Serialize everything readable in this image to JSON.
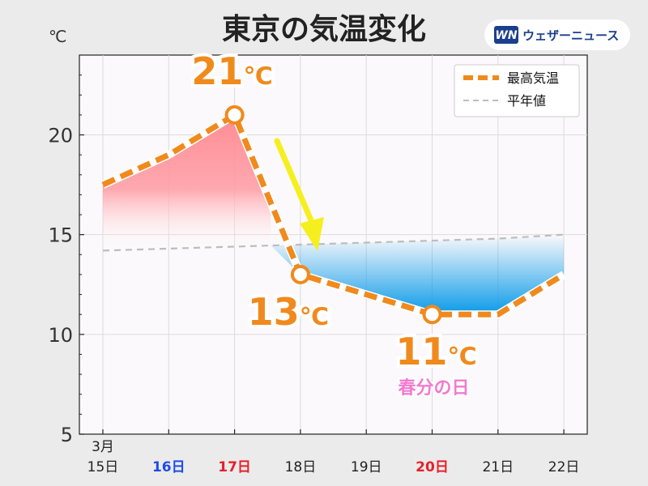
{
  "header": {
    "title": "東京の気温変化",
    "unit": "℃"
  },
  "logo": {
    "mark": "WN",
    "name": "ウェザーニュース"
  },
  "colors": {
    "max_line": "#f08a1d",
    "normal_line": "#bdbdbd",
    "warm_fill": "#ff8c94",
    "cool_fill": "#0a9ae8",
    "arrow": "#f5ef1e",
    "holiday": "#f37ad0"
  },
  "chart_data": {
    "type": "line",
    "ylim": [
      5,
      24
    ],
    "yticks": [
      5,
      10,
      15,
      20
    ],
    "x_labels": [
      {
        "top": "3月",
        "bottom": "15日",
        "color": "#222222",
        "bold": false
      },
      {
        "top": "",
        "bottom": "16日",
        "color": "#1f4be6",
        "bold": true
      },
      {
        "top": "",
        "bottom": "17日",
        "color": "#e8202a",
        "bold": true
      },
      {
        "top": "",
        "bottom": "18日",
        "color": "#222222",
        "bold": false
      },
      {
        "top": "",
        "bottom": "19日",
        "color": "#222222",
        "bold": false
      },
      {
        "top": "",
        "bottom": "20日",
        "color": "#e8202a",
        "bold": true
      },
      {
        "top": "",
        "bottom": "21日",
        "color": "#222222",
        "bold": false
      },
      {
        "top": "",
        "bottom": "22日",
        "color": "#222222",
        "bold": false
      }
    ],
    "series": [
      {
        "name": "最高気温",
        "style": "thick-dashed",
        "values": [
          17.5,
          19.0,
          21.0,
          13.0,
          12.0,
          11.0,
          11.0,
          13.0
        ]
      },
      {
        "name": "平年値",
        "style": "thin-dashed",
        "values": [
          14.2,
          14.3,
          14.4,
          14.5,
          14.6,
          14.7,
          14.8,
          15.0
        ]
      }
    ],
    "markers": [
      2,
      3,
      5
    ],
    "callouts": [
      {
        "index": 2,
        "value": "21",
        "unit": "℃"
      },
      {
        "index": 3,
        "value": "13",
        "unit": "℃"
      },
      {
        "index": 5,
        "value": "11",
        "unit": "℃"
      }
    ],
    "annotations": [
      {
        "index": 5,
        "text": "春分の日"
      }
    ],
    "legend_position": "top-right",
    "grid": true
  }
}
